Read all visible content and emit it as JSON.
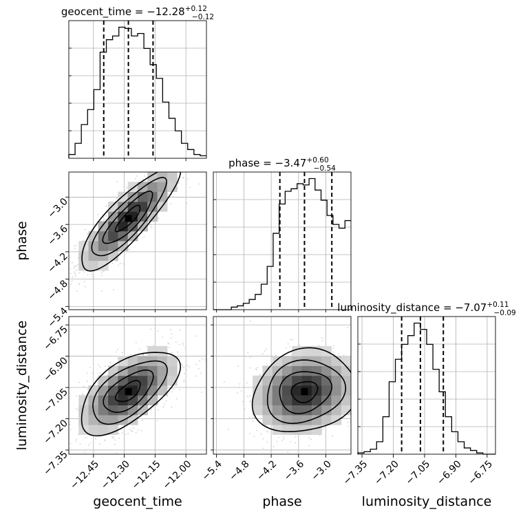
{
  "chart_data": {
    "type": "corner",
    "parameters": [
      "geocent_time",
      "phase",
      "luminosity_distance"
    ],
    "titles": {
      "geocent_time": {
        "label": "geocent_time",
        "median": "−12.28",
        "plus": "+0.12",
        "minus": "−0.12"
      },
      "phase": {
        "label": "phase",
        "median": "−3.47",
        "plus": "+0.60",
        "minus": "−0.54"
      },
      "luminosity_distance": {
        "label": "luminosity_distance",
        "median": "−7.07",
        "plus": "+0.11",
        "minus": "−0.09"
      }
    },
    "ranges": {
      "geocent_time": [
        -12.57,
        -11.9
      ],
      "phase": [
        -5.47,
        -2.45
      ],
      "luminosity_distance": [
        -7.37,
        -6.71
      ]
    },
    "ticks": {
      "geocent_time": [
        -12.45,
        -12.3,
        -12.15,
        -12.0
      ],
      "phase": [
        -5.4,
        -4.8,
        -4.2,
        -3.6,
        -3.0
      ],
      "luminosity_distance": [
        -7.35,
        -7.2,
        -7.05,
        -6.9,
        -6.75
      ]
    },
    "tick_labels": {
      "geocent_time": [
        "−12.45",
        "−12.30",
        "−12.15",
        "−12.00"
      ],
      "phase": [
        "−5.4",
        "−4.8",
        "−4.2",
        "−3.6",
        "−3.0"
      ],
      "luminosity_distance": [
        "−7.35",
        "−7.20",
        "−7.05",
        "−6.90",
        "−6.75"
      ]
    },
    "quantiles": {
      "geocent_time": [
        -12.4,
        -12.28,
        -12.16
      ],
      "phase": [
        -4.01,
        -3.47,
        -2.87
      ],
      "luminosity_distance": [
        -7.16,
        -7.07,
        -6.96
      ]
    },
    "histograms": {
      "geocent_time": {
        "edges_range": [
          -12.57,
          -11.9
        ],
        "counts": [
          3,
          12,
          27,
          39,
          55,
          85,
          95,
          98,
          105,
          104,
          98,
          100,
          88,
          75,
          64,
          45,
          32,
          22,
          12,
          7,
          3,
          2
        ]
      },
      "phase": {
        "edges_range": [
          -5.47,
          -2.45
        ],
        "counts": [
          0,
          0,
          0,
          2,
          3,
          5,
          8,
          12,
          20,
          34,
          60,
          83,
          93,
          95,
          99,
          98,
          103,
          94,
          86,
          74,
          67,
          64,
          70
        ]
      },
      "luminosity_distance": {
        "edges_range": [
          -7.37,
          -6.71
        ],
        "counts": [
          1,
          2,
          4,
          10,
          30,
          58,
          76,
          88,
          95,
          105,
          100,
          88,
          68,
          50,
          30,
          18,
          10,
          5,
          3,
          1,
          0,
          0
        ]
      }
    },
    "pairs": [
      {
        "x": "geocent_time",
        "y": "phase",
        "correlation": 0.85
      },
      {
        "x": "geocent_time",
        "y": "luminosity_distance",
        "correlation": 0.6
      },
      {
        "x": "phase",
        "y": "luminosity_distance",
        "correlation": 0.15
      }
    ],
    "grid": true,
    "colors": {
      "line": "#000000",
      "points": "#bbbbbb"
    }
  }
}
